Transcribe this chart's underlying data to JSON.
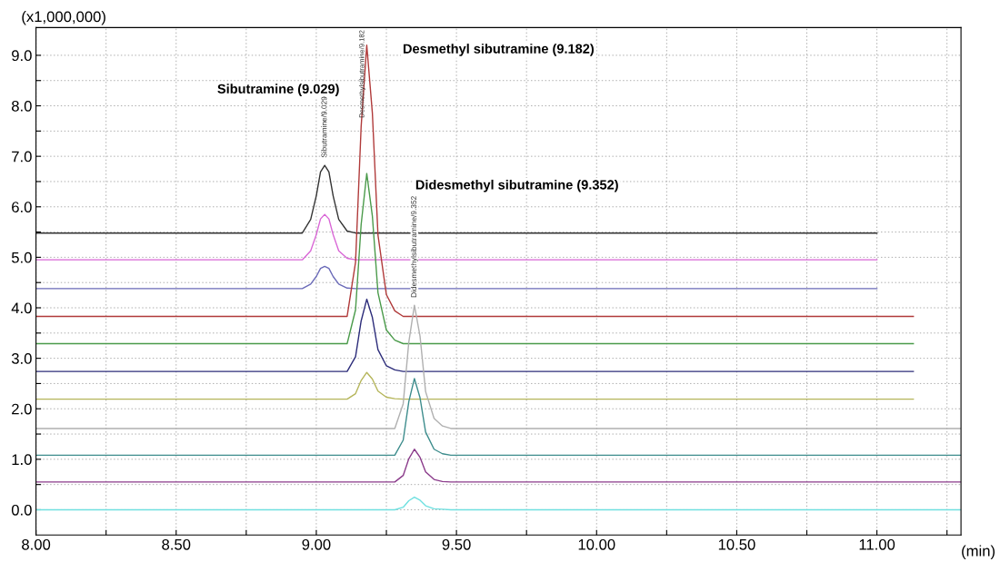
{
  "chart_data": {
    "type": "line",
    "xlabel": "(min)",
    "ylabel": "(x1,000,000)",
    "xlim": [
      8.0,
      11.3
    ],
    "ylim": [
      -0.5,
      9.55
    ],
    "xticks": [
      {
        "value": 8.0,
        "label": "8.00"
      },
      {
        "value": 8.25,
        "label": null
      },
      {
        "value": 8.5,
        "label": "8.50"
      },
      {
        "value": 8.75,
        "label": null
      },
      {
        "value": 9.0,
        "label": "9.00"
      },
      {
        "value": 9.25,
        "label": null
      },
      {
        "value": 9.5,
        "label": "9.50"
      },
      {
        "value": 9.75,
        "label": null
      },
      {
        "value": 10.0,
        "label": "10.00"
      },
      {
        "value": 10.25,
        "label": null
      },
      {
        "value": 10.5,
        "label": "10.50"
      },
      {
        "value": 10.75,
        "label": null
      },
      {
        "value": 11.0,
        "label": "11.00"
      },
      {
        "value": 11.25,
        "label": null
      }
    ],
    "yticks": [
      {
        "value": 0,
        "label": "0.0"
      },
      {
        "value": 0.5,
        "label": null
      },
      {
        "value": 1,
        "label": "1.0"
      },
      {
        "value": 1.5,
        "label": null
      },
      {
        "value": 2,
        "label": "2.0"
      },
      {
        "value": 2.5,
        "label": null
      },
      {
        "value": 3,
        "label": "3.0"
      },
      {
        "value": 3.5,
        "label": null
      },
      {
        "value": 4,
        "label": "4.0"
      },
      {
        "value": 4.5,
        "label": null
      },
      {
        "value": 5,
        "label": "5.0"
      },
      {
        "value": 5.5,
        "label": null
      },
      {
        "value": 6,
        "label": "6.0"
      },
      {
        "value": 6.5,
        "label": null
      },
      {
        "value": 7,
        "label": "7.0"
      },
      {
        "value": 7.5,
        "label": null
      },
      {
        "value": 8,
        "label": "8.0"
      },
      {
        "value": 8.5,
        "label": null
      },
      {
        "value": 9,
        "label": "9.0"
      }
    ],
    "grid": true,
    "legend": false,
    "series": [
      {
        "color": "#333333",
        "x": [
          8.0,
          8.95,
          8.98,
          9.0,
          9.015,
          9.03,
          9.045,
          9.06,
          9.08,
          9.11,
          9.14,
          11.0
        ],
        "values": [
          5.48,
          5.48,
          5.75,
          6.22,
          6.69,
          6.82,
          6.69,
          6.22,
          5.75,
          5.52,
          5.48,
          5.48
        ]
      },
      {
        "color": "#d966d6",
        "x": [
          8.0,
          8.95,
          8.98,
          9.0,
          9.015,
          9.03,
          9.045,
          9.06,
          9.08,
          9.11,
          9.14,
          11.0
        ],
        "values": [
          4.95,
          4.95,
          5.13,
          5.45,
          5.76,
          5.85,
          5.76,
          5.45,
          5.13,
          4.98,
          4.95,
          4.95
        ]
      },
      {
        "color": "#6a6ab8",
        "x": [
          8.0,
          8.95,
          8.98,
          9.0,
          9.015,
          9.03,
          9.045,
          9.06,
          9.08,
          9.11,
          9.14,
          11.0
        ],
        "values": [
          4.38,
          4.38,
          4.47,
          4.62,
          4.78,
          4.82,
          4.78,
          4.62,
          4.47,
          4.39,
          4.38,
          4.38
        ]
      },
      {
        "color": "#b03a3a",
        "x": [
          8.0,
          9.11,
          9.14,
          9.16,
          9.18,
          9.2,
          9.22,
          9.25,
          9.28,
          9.31,
          11.13
        ],
        "values": [
          3.83,
          3.83,
          4.9,
          7.59,
          9.2,
          7.86,
          5.44,
          4.26,
          3.94,
          3.83,
          3.83
        ]
      },
      {
        "color": "#4a9a4a",
        "x": [
          8.0,
          9.11,
          9.14,
          9.16,
          9.18,
          9.2,
          9.22,
          9.25,
          9.28,
          9.31,
          11.13
        ],
        "values": [
          3.29,
          3.29,
          3.96,
          5.65,
          6.66,
          5.82,
          4.3,
          3.56,
          3.36,
          3.29,
          3.29
        ]
      },
      {
        "color": "#2c2c7a",
        "x": [
          8.0,
          9.11,
          9.14,
          9.16,
          9.18,
          9.2,
          9.22,
          9.25,
          9.28,
          9.31,
          11.13
        ],
        "values": [
          2.74,
          2.74,
          3.03,
          3.74,
          4.17,
          3.81,
          3.17,
          2.85,
          2.77,
          2.74,
          2.74
        ]
      },
      {
        "color": "#b5b55a",
        "x": [
          8.0,
          9.11,
          9.14,
          9.16,
          9.18,
          9.2,
          9.22,
          9.25,
          9.28,
          9.31,
          11.13
        ],
        "values": [
          2.19,
          2.19,
          2.3,
          2.56,
          2.72,
          2.59,
          2.35,
          2.23,
          2.2,
          2.19,
          2.19
        ]
      },
      {
        "color": "#b0b0b0",
        "x": [
          8.0,
          9.28,
          9.31,
          9.33,
          9.35,
          9.37,
          9.39,
          9.42,
          9.45,
          9.48,
          11.3
        ],
        "values": [
          1.61,
          1.61,
          2.1,
          3.32,
          4.05,
          3.44,
          2.34,
          1.81,
          1.66,
          1.61,
          1.61
        ]
      },
      {
        "color": "#3c8c8c",
        "x": [
          8.0,
          9.28,
          9.31,
          9.33,
          9.35,
          9.37,
          9.39,
          9.42,
          9.45,
          9.48,
          11.3
        ],
        "values": [
          1.08,
          1.08,
          1.38,
          2.14,
          2.6,
          2.22,
          1.54,
          1.2,
          1.11,
          1.08,
          1.08
        ]
      },
      {
        "color": "#8a3a8a",
        "x": [
          8.0,
          9.28,
          9.31,
          9.33,
          9.35,
          9.37,
          9.39,
          9.42,
          9.45,
          9.48,
          11.3
        ],
        "values": [
          0.55,
          0.55,
          0.68,
          1.01,
          1.2,
          1.04,
          0.75,
          0.6,
          0.56,
          0.55,
          0.55
        ]
      },
      {
        "color": "#6fe0e0",
        "x": [
          8.0,
          9.28,
          9.31,
          9.33,
          9.35,
          9.37,
          9.39,
          9.42,
          9.45,
          9.48,
          11.3
        ],
        "values": [
          0,
          0,
          0.05,
          0.18,
          0.25,
          0.19,
          0.08,
          0.02,
          0.01,
          0,
          0
        ]
      }
    ],
    "annotations": [
      "Sibutramine (9.029)",
      "Desmethyl sibutramine (9.182)",
      "Didesmethyl sibutramine (9.352)",
      {
        "text": "Sibutramine/9.029",
        "x": 9.03,
        "y": 6.82
      },
      {
        "text": "Desmethylsibutramine/9.182",
        "x": 9.18,
        "y": 9.2
      },
      {
        "text": "Didesmethylsibutramine/9.352",
        "x": 9.35,
        "y": 4.05
      }
    ]
  }
}
